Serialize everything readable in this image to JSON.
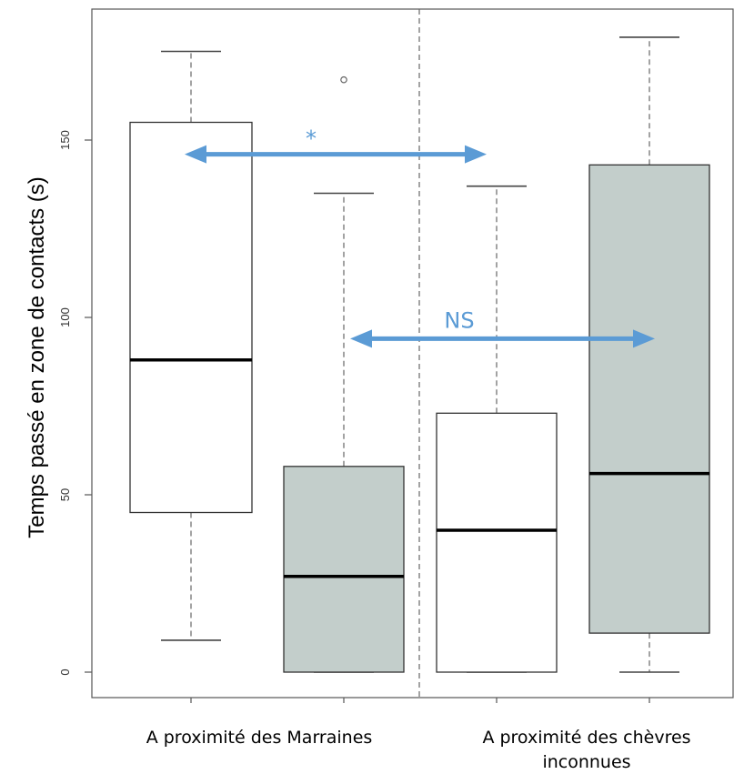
{
  "chart_data": {
    "type": "boxplot",
    "title": "",
    "ylabel": "Temps passé en zone de contacts (s)",
    "xlabel": "",
    "ylim": [
      -7,
      190
    ],
    "yticks": [
      0,
      50,
      100,
      150
    ],
    "grid": false,
    "groups": [
      "A proximité des Marraines",
      "A proximité des chèvres inconnues"
    ],
    "boxes": [
      {
        "group": 0,
        "color": "#ffffff",
        "whisker_low": 9,
        "q1": 45,
        "median": 88,
        "q3": 155,
        "whisker_high": 175,
        "outliers": []
      },
      {
        "group": 0,
        "color": "#c3cecb",
        "whisker_low": 0,
        "q1": 0,
        "median": 27,
        "q3": 58,
        "whisker_high": 135,
        "outliers": [
          167
        ]
      },
      {
        "group": 1,
        "color": "#ffffff",
        "whisker_low": 0,
        "q1": 0,
        "median": 40,
        "q3": 73,
        "whisker_high": 137,
        "outliers": []
      },
      {
        "group": 1,
        "color": "#c3cecb",
        "whisker_low": 0,
        "q1": 11,
        "median": 56,
        "q3": 143,
        "whisker_high": 179,
        "outliers": []
      }
    ],
    "annotations": [
      {
        "label": "*",
        "from_box": 0,
        "to_box": 2,
        "y": 146
      },
      {
        "label": "NS",
        "from_box": 1,
        "to_box": 3,
        "y": 94
      }
    ],
    "arrow_color": "#5b9bd5"
  }
}
